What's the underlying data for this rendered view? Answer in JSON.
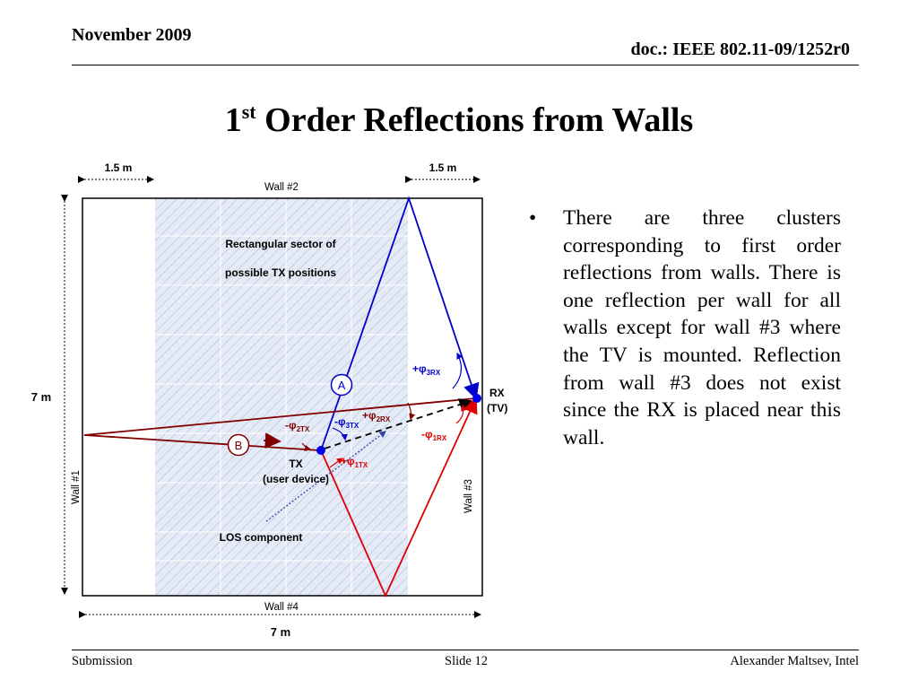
{
  "header": {
    "date": "November 2009",
    "doc_id": "doc.: IEEE 802.11-09/1252r0"
  },
  "title": {
    "prefix": "1",
    "superscript": "st",
    "rest": " Order Reflections from Walls"
  },
  "diagram": {
    "dim_left_top": "1.5 m",
    "dim_right_top": "1.5 m",
    "wall2": "Wall #2",
    "wall1": "Wall #1",
    "wall3": "Wall #3",
    "wall4": "Wall #4",
    "height_dim": "7 m",
    "width_dim": "7 m",
    "sector_line1": "Rectangular sector of",
    "sector_line2": "possible TX positions",
    "rx_line1": "RX",
    "rx_line2": "(TV)",
    "tx_line1": "TX",
    "tx_line2": "(user device)",
    "los": "LOS component",
    "marker_a": "A",
    "marker_b": "B",
    "angles": {
      "phi3rx": {
        "sign": "+φ",
        "sub": "3RX"
      },
      "phi2rx": {
        "sign": "+φ",
        "sub": "2RX"
      },
      "phi3tx": {
        "sign": "-φ",
        "sub": "3TX"
      },
      "phi2tx": {
        "sign": "-φ",
        "sub": "2TX"
      },
      "phi1rx": {
        "sign": "-φ",
        "sub": "1RX"
      },
      "phi1tx": {
        "sign": "+φ",
        "sub": "1TX"
      }
    },
    "colors": {
      "blue": "#0000cc",
      "red": "#dd0000",
      "darkred": "#800000",
      "sector": "#e4eaf6"
    }
  },
  "bullets": {
    "mark": "•",
    "text": "There are three clusters corresponding to first order reflections from walls. There is one reflection per wall for all walls except for wall #3 where the TV is mounted. Reflection from wall #3 does not exist since the RX is placed near this wall."
  },
  "footer": {
    "left": "Submission",
    "center": "Slide 12",
    "right": "Alexander Maltsev, Intel"
  }
}
